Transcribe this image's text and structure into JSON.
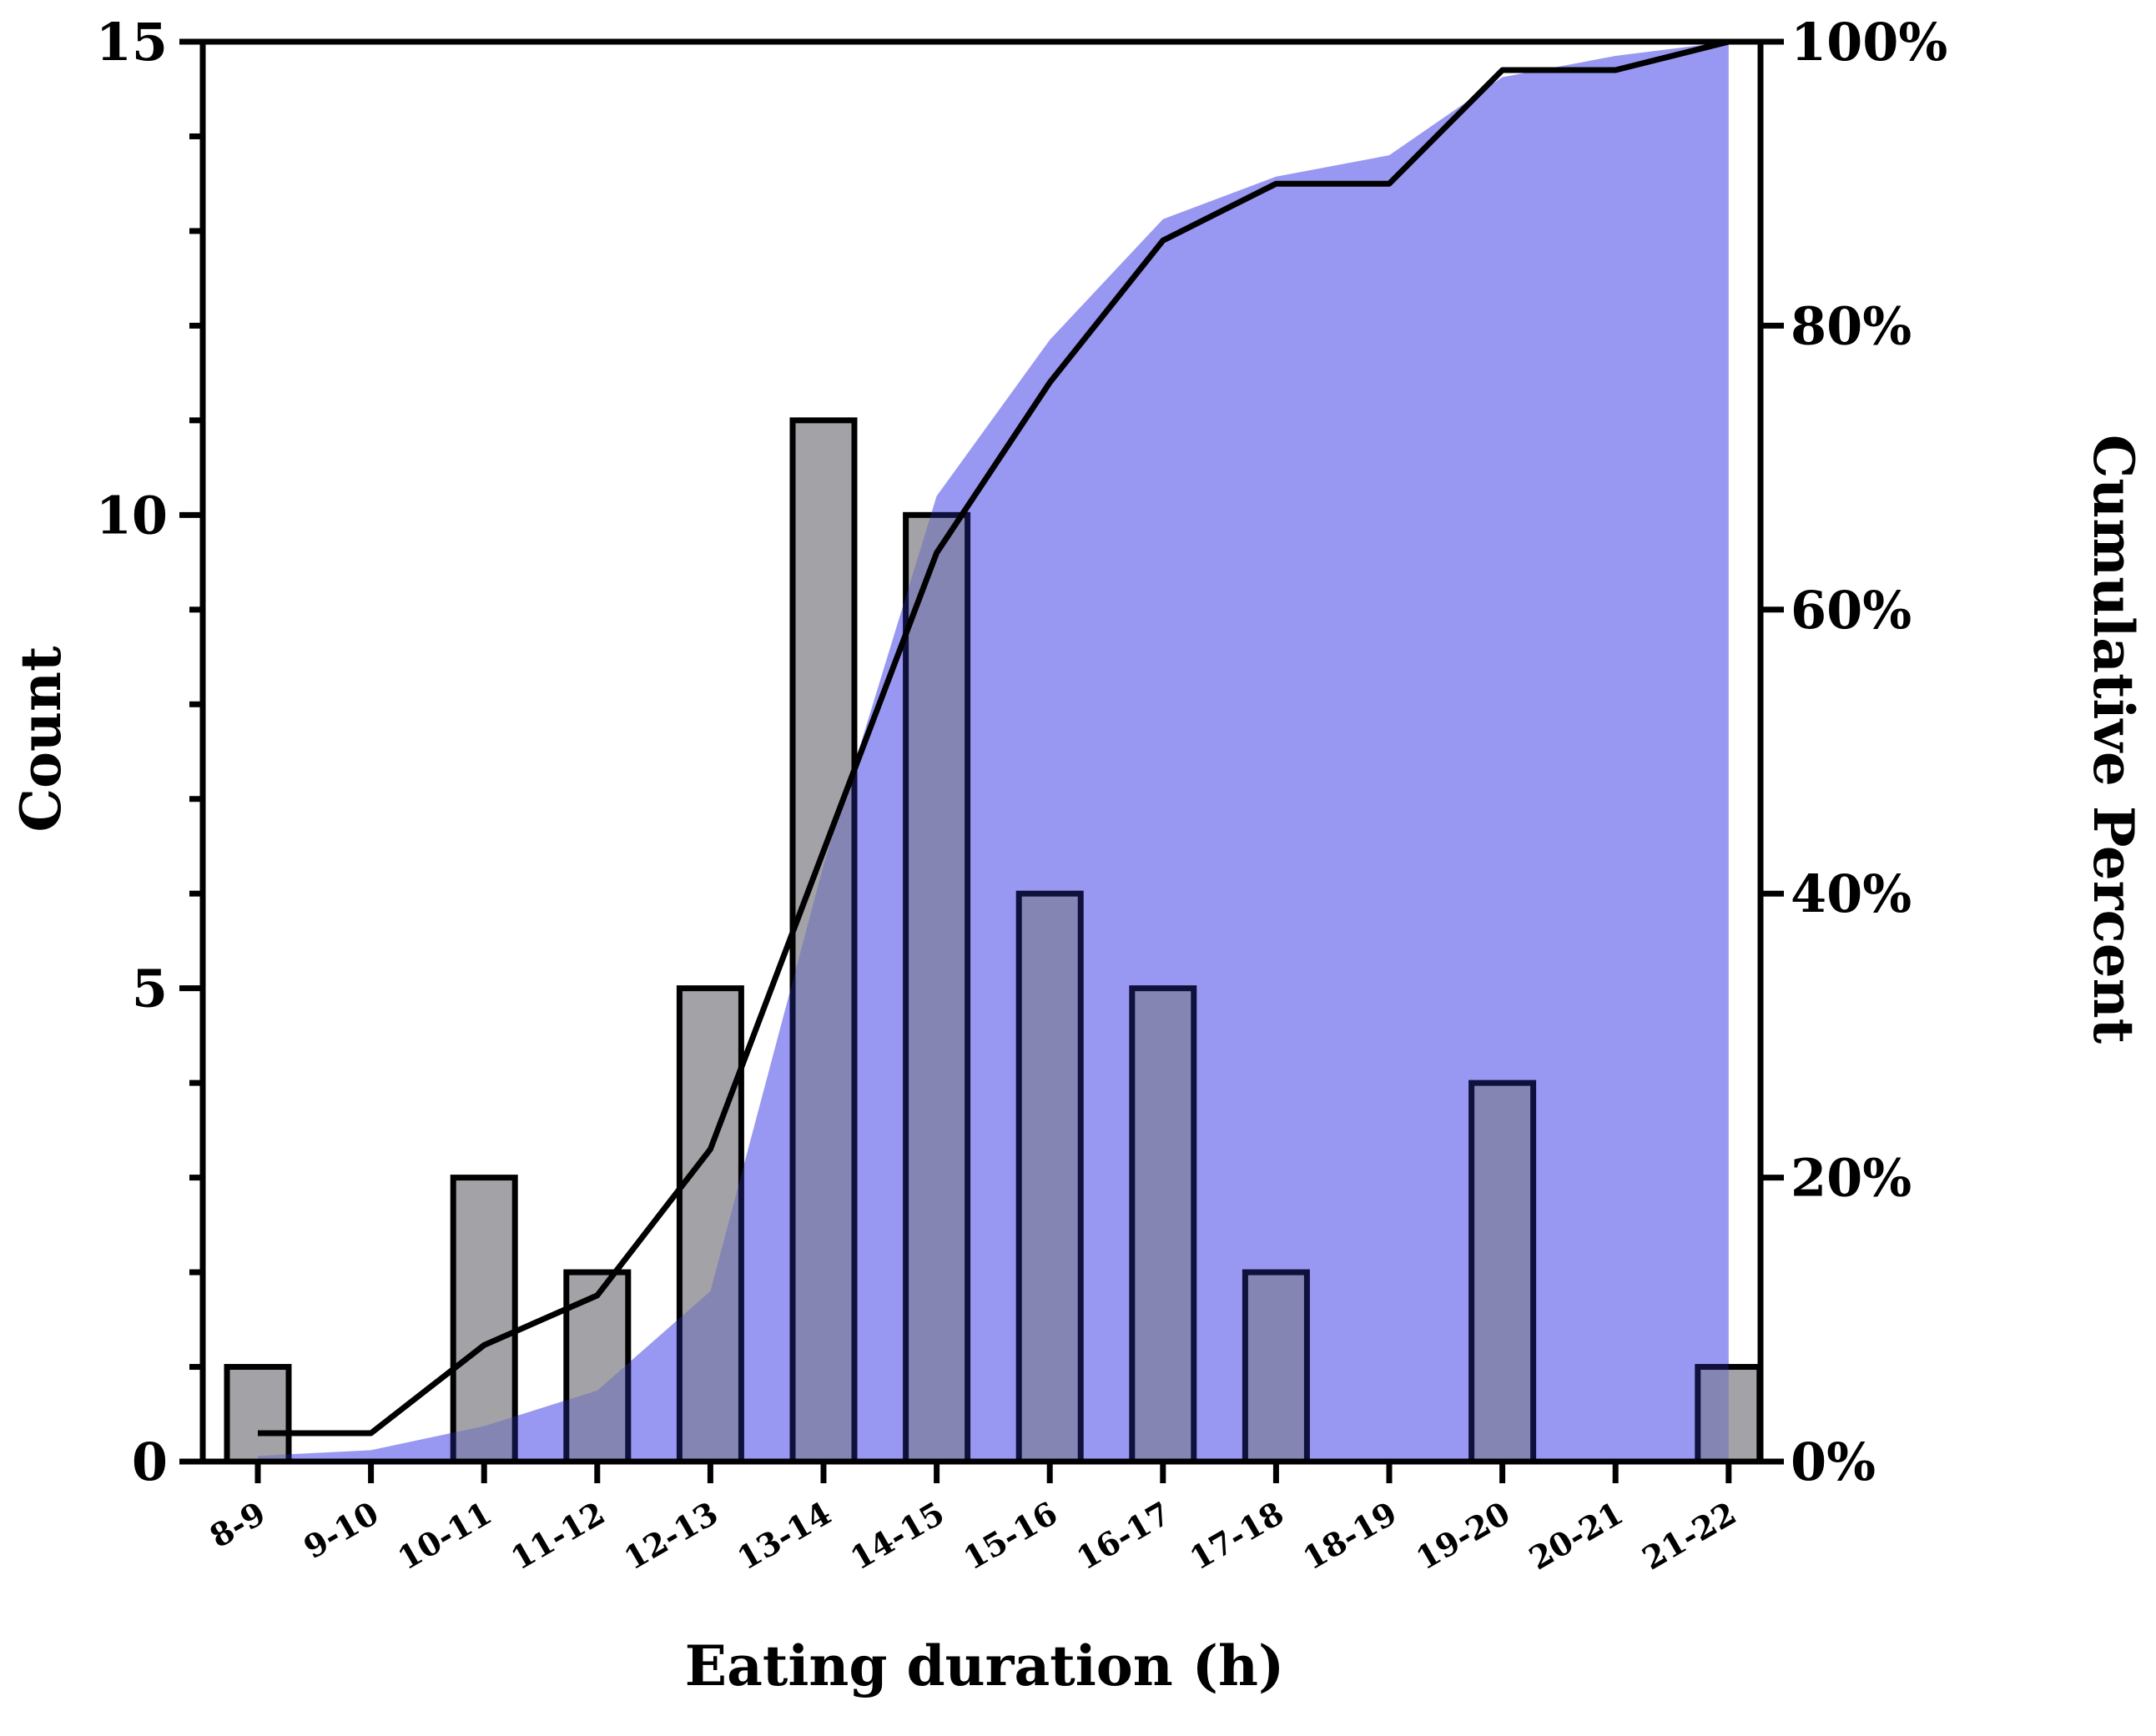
{
  "chart_data": {
    "type": "bar",
    "title": "",
    "xlabel": "Eating duration (h)",
    "ylabel": "Count",
    "y2label": "Cumulative Percent",
    "categories": [
      "8-9",
      "9-10",
      "10-11",
      "11-12",
      "12-13",
      "13-14",
      "14-15",
      "15-16",
      "16-17",
      "17-18",
      "18-19",
      "19-20",
      "20-21",
      "21-22"
    ],
    "series": [
      {
        "name": "Count",
        "type": "bar",
        "axis": "left",
        "color": "#a3a3a7",
        "values": [
          1,
          0,
          3,
          2,
          5,
          11,
          10,
          6,
          5,
          2,
          0,
          4,
          0,
          1
        ]
      },
      {
        "name": "Cumulative Percent",
        "type": "line",
        "axis": "right",
        "color": "#000000",
        "values": [
          2,
          2,
          8.2,
          11.7,
          22,
          43,
          64,
          76,
          86,
          90,
          90,
          98,
          98,
          100
        ]
      },
      {
        "name": "Cumulative Percent (area)",
        "type": "area",
        "axis": "right",
        "color": "#bdbdfc",
        "values": [
          0.4,
          0.8,
          2.5,
          5,
          12,
          42,
          68,
          79,
          87.5,
          90.5,
          92,
          97.5,
          99,
          100
        ]
      }
    ],
    "ylim": [
      0,
      15
    ],
    "y2lim": [
      0,
      100
    ],
    "yticks": [
      "0",
      "5",
      "10",
      "15"
    ],
    "y2ticks": [
      "0%",
      "20%",
      "40%",
      "60%",
      "80%",
      "100%"
    ],
    "grid": false,
    "legend": "none"
  }
}
